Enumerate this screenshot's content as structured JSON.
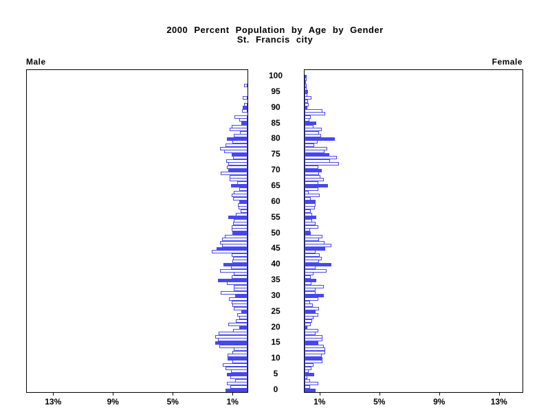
{
  "title": {
    "line1": "2000 Percent Population by Age by Gender",
    "line2": "St. Francis city"
  },
  "panels": {
    "male_label": "Male",
    "female_label": "Female"
  },
  "axis": {
    "male_tick_labels": [
      "13%",
      "9%",
      "5%",
      "1%"
    ],
    "male_tick_values": [
      13,
      9,
      5,
      1
    ],
    "female_tick_labels": [
      "1%",
      "5%",
      "9%",
      "13%"
    ],
    "female_tick_values": [
      1,
      5,
      9,
      13
    ],
    "age_tick_labels": [
      "0",
      "5",
      "10",
      "15",
      "20",
      "25",
      "30",
      "35",
      "40",
      "45",
      "50",
      "55",
      "60",
      "65",
      "70",
      "75",
      "80",
      "85",
      "90",
      "95",
      "100"
    ]
  },
  "colors": {
    "bar_blue": "#4747ef",
    "bar_white_fill": "#ffffff",
    "axis_black": "#000000"
  },
  "chart_data": {
    "type": "bar",
    "subtype": "population-pyramid",
    "title": "2000 Percent Population by Age by Gender",
    "subtitle": "St. Francis city",
    "unit": "percent of total population per single year of age",
    "orientation": "horizontal, male bars grow left, female bars grow right",
    "xlabel_ticks_percent": [
      1,
      5,
      9,
      13
    ],
    "xlim_percent": [
      0,
      14.8
    ],
    "ages": "single years 0 through 100, age 0 at bottom, 100 at top; labels every 5 years",
    "highlight_rule": "bars for ages divisible by 5 are solid blue; all other ages are white with blue outline",
    "legend_position": "none",
    "grid": false,
    "series": [
      {
        "name": "Male",
        "values": [
          1.45,
          1.15,
          1.4,
          0.85,
          1.15,
          1.4,
          1.1,
          1.45,
          1.65,
          1.0,
          1.35,
          1.35,
          1.0,
          0.9,
          1.87,
          2.18,
          1.96,
          2.18,
          1.92,
          0.95,
          0.54,
          1.3,
          0.8,
          0.57,
          0.7,
          0.4,
          0.92,
          1.03,
          1.07,
          1.23,
          0.81,
          1.81,
          0.92,
          0.92,
          1.38,
          1.96,
          1.04,
          0.92,
          1.84,
          1.1,
          1.61,
          1.0,
          0.95,
          1.07,
          2.38,
          2.07,
          1.69,
          1.85,
          1.72,
          1.5,
          1.0,
          1.04,
          1.07,
          0.95,
          0.92,
          1.3,
          0.8,
          0.45,
          0.6,
          0.64,
          0.54,
          0.95,
          1.04,
          0.9,
          0.54,
          1.1,
          0.69,
          1.2,
          1.2,
          1.79,
          1.3,
          1.38,
          1.3,
          1.41,
          0.97,
          1.07,
          1.56,
          1.84,
          1.49,
          1.0,
          1.38,
          0.92,
          0.51,
          1.2,
          1.04,
          0.43,
          0.54,
          0.87,
          0.0,
          0.38,
          0.34,
          0.23,
          0.0,
          0.34,
          0.0,
          0.0,
          0.0,
          0.23,
          0.0,
          0.0,
          0.0
        ]
      },
      {
        "name": "Female",
        "values": [
          0.75,
          0.37,
          0.9,
          0.37,
          0.18,
          0.64,
          0.29,
          0.44,
          0.6,
          1.21,
          1.21,
          1.13,
          1.39,
          1.39,
          1.29,
          0.93,
          1.18,
          1.18,
          0.72,
          0.9,
          0.18,
          0.41,
          0.52,
          0.6,
          0.93,
          0.72,
          0.98,
          0.57,
          0.37,
          0.93,
          1.29,
          0.75,
          0.75,
          1.29,
          0.44,
          0.78,
          0.41,
          0.6,
          1.49,
          0.72,
          1.79,
          0.95,
          1.13,
          1.03,
          0.72,
          1.39,
          1.79,
          1.33,
          0.95,
          1.21,
          0.41,
          0.37,
          0.9,
          0.72,
          0.52,
          0.78,
          0.5,
          0.41,
          0.67,
          0.75,
          0.75,
          0.4,
          1.03,
          0.29,
          0.9,
          1.55,
          0.9,
          1.29,
          1.06,
          0.95,
          1.16,
          0.9,
          2.28,
          1.7,
          2.18,
          1.67,
          1.33,
          1.52,
          0.64,
          0.87,
          2.0,
          1.1,
          0.98,
          1.16,
          0.6,
          0.78,
          0.3,
          0.4,
          1.36,
          1.21,
          0.18,
          0.29,
          0.23,
          0.44,
          0.18,
          0.23,
          0.12,
          0.14,
          0.09,
          0.14,
          0.14
        ]
      }
    ]
  }
}
